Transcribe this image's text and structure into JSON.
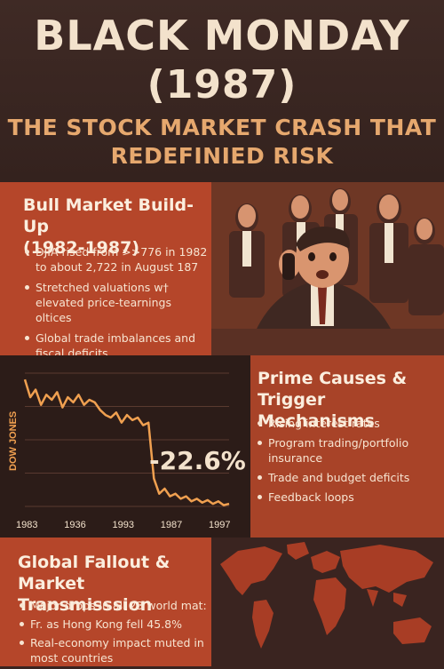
{
  "header": {
    "title_line1": "BLACK MONDAY",
    "title_line2": "(1987)",
    "subtitle_line1": "THE STOCK MARKET CRASH THAT",
    "subtitle_line2": "REDEFINIED RISK"
  },
  "bull_market": {
    "title_line1": "Bull Market Build-Up",
    "title_line2": "(1982-1987)",
    "bullets": [
      "DJIA rised from >>776 in 1982 to about 2,722 in August 187",
      "Stretched valuations w† elevated price-tearnings oltices",
      "Global trade imbalances and fiscal deficits"
    ]
  },
  "prime_causes": {
    "title_line1": "Prime Causes &",
    "title_line2": "Trigger Mechanisms",
    "bullets": [
      "Rising interest rates",
      "Program trading/portfolio insurance",
      "Trade and budget deficits",
      "Feedback loops"
    ]
  },
  "global_fallout": {
    "title_line1": "Global Fallout &",
    "title_line2": "Market Transmisssion",
    "bullets": [
      "Major drops in all 23 world mat:",
      "Fr. as Hong Kong fell 45.8%",
      "Real-economy impact muted in most countries"
    ]
  },
  "colors": {
    "background": "#3a2420",
    "panel_orange": "#b5462a",
    "accent_line": "#f0a050",
    "title_cream": "#f3e2cc",
    "subtitle_orange": "#e6a86e"
  },
  "chart_data": {
    "type": "line",
    "ylabel": "DOW JONES",
    "annotation": "-22.6%",
    "x_tick_labels": [
      "1983",
      "1936",
      "1993",
      "1987",
      "1997"
    ],
    "series": [
      {
        "values": [
          100,
          86,
          92,
          80,
          88,
          84,
          90,
          78,
          86,
          82,
          88,
          80,
          84,
          82,
          76,
          72,
          70,
          74,
          66,
          72,
          68,
          70,
          64,
          66,
          22,
          10,
          14,
          8,
          10,
          6,
          8,
          4,
          6,
          3,
          5,
          2,
          4,
          1,
          2
        ]
      }
    ],
    "ylim": [
      0,
      105
    ],
    "grid": true
  }
}
